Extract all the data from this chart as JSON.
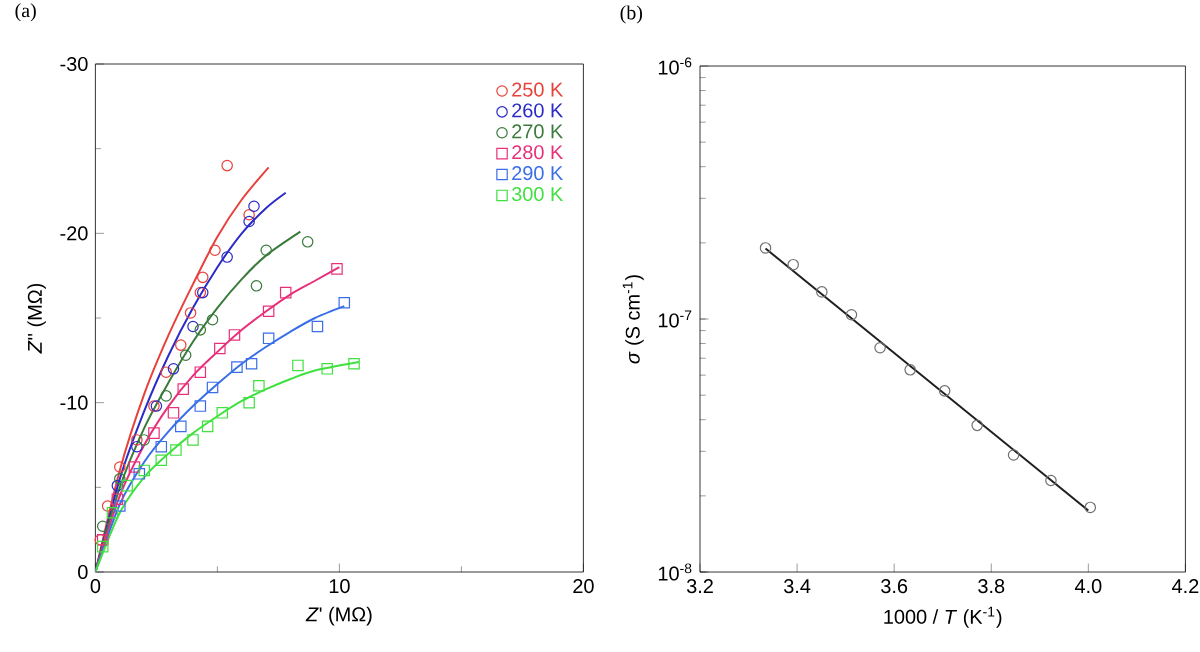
{
  "chart_data": [
    {
      "type": "scatter",
      "title": "(a)",
      "xlabel": "*Z*' (MΩ)",
      "ylabel": "*Z*'' (MΩ)",
      "xlim": [
        0,
        20
      ],
      "ylim": [
        0,
        -30
      ],
      "xticks": [
        0,
        10,
        20
      ],
      "yticks": [
        0,
        -10,
        -20,
        -30
      ],
      "legend": "top right",
      "series": [
        {
          "name": "250 K",
          "color": "#e8403a",
          "marker": "circle",
          "x": [
            0.2,
            0.5,
            1.0,
            1.7,
            2.4,
            2.9,
            3.5,
            3.9,
            4.3,
            4.4,
            4.9,
            6.3,
            5.4
          ],
          "values": [
            -1.9,
            -3.9,
            -6.2,
            -7.8,
            -9.8,
            -11.8,
            -13.4,
            -15.3,
            -16.5,
            -17.4,
            -19.0,
            -21.1,
            -24.0
          ]
        },
        {
          "name": "260 K",
          "color": "#2b2bc8",
          "marker": "circle",
          "x": [
            0.9,
            1.7,
            2.5,
            3.2,
            4.0,
            4.4,
            5.4,
            6.3,
            6.5
          ],
          "values": [
            -5.1,
            -7.4,
            -9.8,
            -12.0,
            -14.5,
            -16.5,
            -18.6,
            -20.7,
            -21.6
          ]
        },
        {
          "name": "270 K",
          "color": "#3a7a3a",
          "marker": "circle",
          "x": [
            0.3,
            1.0,
            2.0,
            2.9,
            3.7,
            4.3,
            4.8,
            6.6,
            7.0,
            8.7
          ],
          "values": [
            -2.7,
            -5.5,
            -7.8,
            -10.4,
            -12.8,
            -14.3,
            -14.9,
            -16.9,
            -19.0,
            -19.5
          ]
        },
        {
          "name": "280 K",
          "color": "#e8307a",
          "marker": "square",
          "x": [
            0.3,
            0.9,
            1.6,
            2.4,
            3.2,
            3.6,
            4.3,
            5.1,
            5.7,
            7.1,
            7.8,
            9.9
          ],
          "values": [
            -1.9,
            -4.3,
            -6.2,
            -8.2,
            -9.4,
            -10.8,
            -11.8,
            -13.2,
            -14.0,
            -15.4,
            -16.5,
            -17.9
          ]
        },
        {
          "name": "290 K",
          "color": "#3a6ee8",
          "marker": "square",
          "x": [
            1.0,
            1.8,
            2.7,
            3.5,
            4.3,
            4.8,
            5.8,
            6.4,
            7.1,
            9.1,
            10.2
          ],
          "values": [
            -3.9,
            -5.8,
            -7.4,
            -8.6,
            -9.8,
            -10.9,
            -12.1,
            -12.3,
            -13.8,
            -14.5,
            -15.9
          ]
        },
        {
          "name": "300 K",
          "color": "#40e040",
          "marker": "square",
          "x": [
            0.3,
            0.7,
            1.3,
            2.0,
            2.7,
            3.3,
            4.0,
            4.6,
            5.2,
            6.3,
            6.7,
            8.3,
            9.5,
            10.6
          ],
          "values": [
            -1.5,
            -3.5,
            -5.1,
            -6.0,
            -6.6,
            -7.2,
            -7.8,
            -8.6,
            -9.4,
            -10.0,
            -11.0,
            -12.2,
            -12.0,
            -12.3
          ]
        },
        {
          "type": "line",
          "marker": "none",
          "color": "#e8403a",
          "x": [
            0,
            1,
            2,
            3,
            4,
            5,
            6,
            7.1
          ],
          "values": [
            0,
            -6,
            -10.5,
            -14,
            -17,
            -19.8,
            -22,
            -23.9
          ]
        },
        {
          "type": "line",
          "marker": "none",
          "color": "#2b2bc8",
          "x": [
            0,
            1,
            2,
            3,
            4,
            5,
            6,
            7,
            7.8
          ],
          "values": [
            0,
            -5.5,
            -9.5,
            -12.8,
            -15.6,
            -18,
            -20,
            -21.5,
            -22.4
          ]
        },
        {
          "type": "line",
          "marker": "none",
          "color": "#3a7a3a",
          "x": [
            0,
            1,
            2,
            3,
            4,
            5,
            6,
            7,
            8.4
          ],
          "values": [
            0,
            -5,
            -8.5,
            -11.2,
            -13.6,
            -15.6,
            -17.3,
            -18.7,
            -20.1
          ]
        },
        {
          "type": "line",
          "marker": "none",
          "color": "#e8307a",
          "x": [
            0,
            1,
            2,
            3,
            4,
            5,
            6,
            7,
            8,
            9,
            10
          ],
          "values": [
            0,
            -4.5,
            -7.5,
            -9.8,
            -11.6,
            -13,
            -14.3,
            -15.4,
            -16.4,
            -17.2,
            -18
          ]
        },
        {
          "type": "line",
          "marker": "none",
          "color": "#3a6ee8",
          "x": [
            0,
            1,
            2,
            3,
            4,
            5,
            6,
            7,
            8,
            9,
            10.2
          ],
          "values": [
            0,
            -4,
            -6.5,
            -8.3,
            -9.8,
            -11.1,
            -12.3,
            -13.3,
            -14.2,
            -15,
            -15.7
          ]
        },
        {
          "type": "line",
          "marker": "none",
          "color": "#40e040",
          "x": [
            0,
            1,
            2,
            3,
            4,
            5,
            6,
            7,
            8,
            9,
            10.8
          ],
          "values": [
            0,
            -3.5,
            -5.6,
            -7,
            -8.2,
            -9.2,
            -10.1,
            -10.8,
            -11.4,
            -11.9,
            -12.4
          ]
        }
      ]
    },
    {
      "type": "scatter",
      "title": "(b)",
      "xlabel": "1000 / *T* (K$^{-1}$)",
      "ylabel": "*σ* (S cm$^{-1}$)",
      "log": "y",
      "xlim": [
        3.2,
        4.2
      ],
      "ylim": [
        1e-08,
        1e-06
      ],
      "xticks": [
        3.2,
        3.4,
        3.6,
        3.8,
        {
          "value": 4,
          "label": "4.0"
        },
        4.2
      ],
      "yticks": [
        {
          "value": 1e-08,
          "label": "10$^{-8}$"
        },
        {
          "value": 1e-07,
          "label": "10$^{-7}$"
        },
        {
          "value": 1e-06,
          "label": "10$^{-6}$"
        }
      ],
      "series": [
        {
          "color": "#707070",
          "marker": "circle",
          "x": [
            3.335,
            3.392,
            3.451,
            3.512,
            3.571,
            3.633,
            3.704,
            3.771,
            3.846,
            3.923,
            4.004
          ],
          "values": [
            1.91e-07,
            1.64e-07,
            1.28e-07,
            1.04e-07,
            7.7e-08,
            6.3e-08,
            5.2e-08,
            3.8e-08,
            2.9e-08,
            2.3e-08,
            1.8e-08
          ]
        },
        {
          "type": "line",
          "marker": "none",
          "color": "#202020",
          "x": [
            3.335,
            4.0
          ],
          "values": [
            1.9e-07,
            1.75e-08
          ]
        }
      ]
    }
  ]
}
